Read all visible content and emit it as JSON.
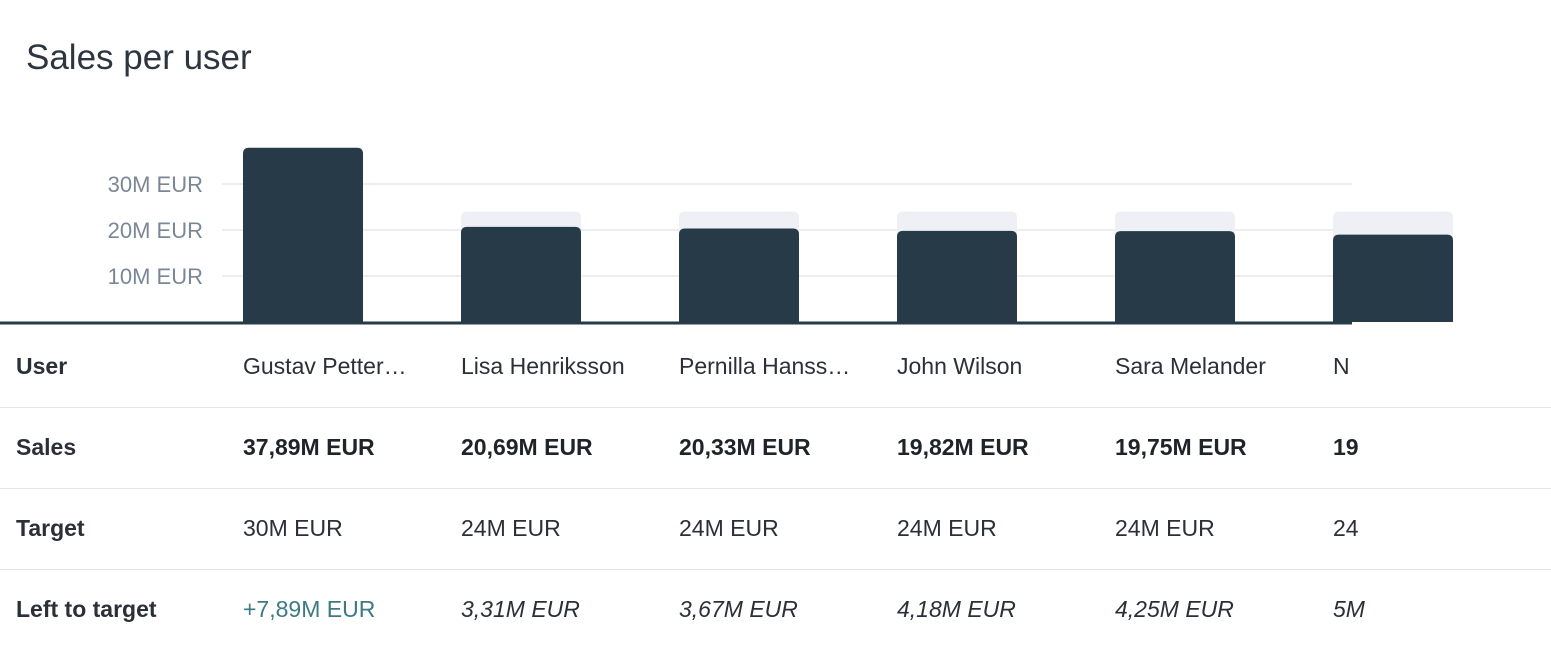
{
  "title": "Sales per user",
  "chart_data": {
    "type": "bar",
    "title": "Sales per user",
    "categories": [
      "Gustav Petter…",
      "Lisa Henriksson",
      "Pernilla Hanss…",
      "John Wilson",
      "Sara Melander",
      "N"
    ],
    "series": [
      {
        "name": "Sales",
        "values": [
          37.89,
          20.69,
          20.33,
          19.82,
          19.75,
          19
        ]
      },
      {
        "name": "Target",
        "values": [
          30,
          24,
          24,
          24,
          24,
          24
        ]
      }
    ],
    "yticks": [
      {
        "value": 10,
        "label": "10M EUR"
      },
      {
        "value": 20,
        "label": "20M EUR"
      },
      {
        "value": 30,
        "label": "30M EUR"
      }
    ],
    "ylim": [
      0,
      38
    ],
    "grid": true,
    "colors": {
      "sales": "#263a47",
      "target": "#eef0f5",
      "grid": "#e6e8ec",
      "axis": "#263a47",
      "positive": "#3d7a82"
    }
  },
  "table": {
    "row_labels": {
      "user": "User",
      "sales": "Sales",
      "target": "Target",
      "left": "Left to target"
    },
    "columns": [
      {
        "user": "Gustav Petter…",
        "sales": "37,89M EUR",
        "target": "30M EUR",
        "left": "+7,89M EUR",
        "positive": true
      },
      {
        "user": "Lisa Henriksson",
        "sales": "20,69M EUR",
        "target": "24M EUR",
        "left": "3,31M EUR",
        "positive": false
      },
      {
        "user": "Pernilla Hanss…",
        "sales": "20,33M EUR",
        "target": "24M EUR",
        "left": "3,67M EUR",
        "positive": false
      },
      {
        "user": "John Wilson",
        "sales": "19,82M EUR",
        "target": "24M EUR",
        "left": "4,18M EUR",
        "positive": false
      },
      {
        "user": "Sara Melander",
        "sales": "19,75M EUR",
        "target": "24M EUR",
        "left": "4,25M EUR",
        "positive": false
      },
      {
        "user": "N",
        "sales": "19",
        "target": "24",
        "left": "5M",
        "positive": false
      }
    ]
  }
}
